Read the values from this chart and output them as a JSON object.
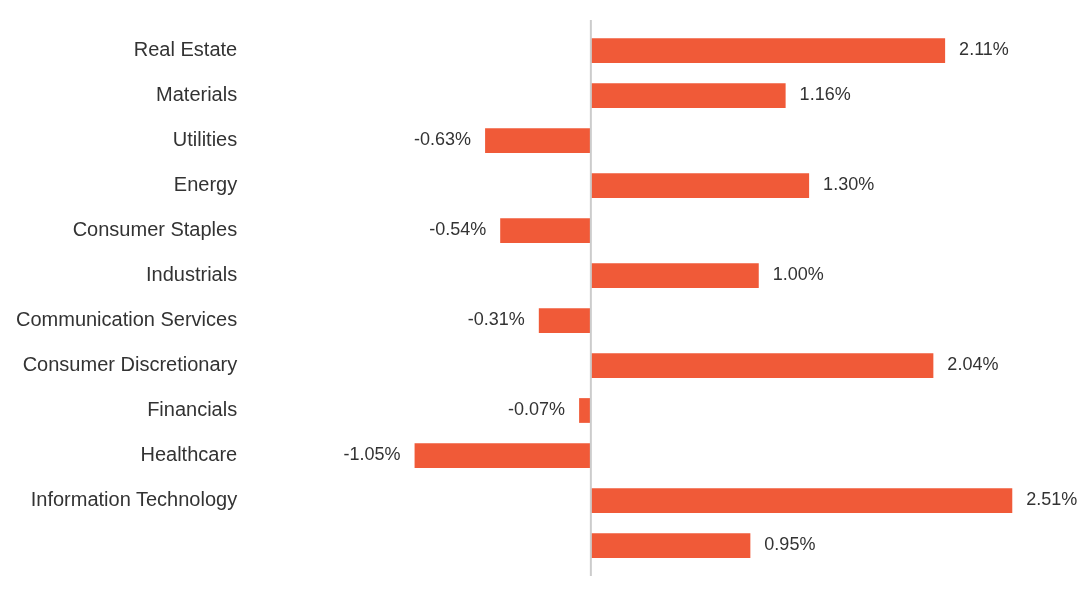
{
  "chart_data": {
    "type": "bar",
    "orientation": "horizontal",
    "categories": [
      "Real Estate",
      "Materials",
      "Utilities",
      "Energy",
      "Consumer Staples",
      "Industrials",
      "Communication Services",
      "Consumer Discretionary",
      "Financials",
      "Healthcare",
      "Information Technology",
      null
    ],
    "values": [
      2.11,
      1.16,
      -0.63,
      1.3,
      -0.54,
      1.0,
      -0.31,
      2.04,
      -0.07,
      -1.05,
      2.51,
      0.95
    ],
    "value_labels": [
      "2.11%",
      "1.16%",
      "-0.63%",
      "1.30%",
      "-0.54%",
      "1.00%",
      "-0.31%",
      "2.04%",
      "-0.07%",
      "-1.05%",
      "2.51%",
      "0.95%"
    ],
    "color": "#f05a38"
  }
}
